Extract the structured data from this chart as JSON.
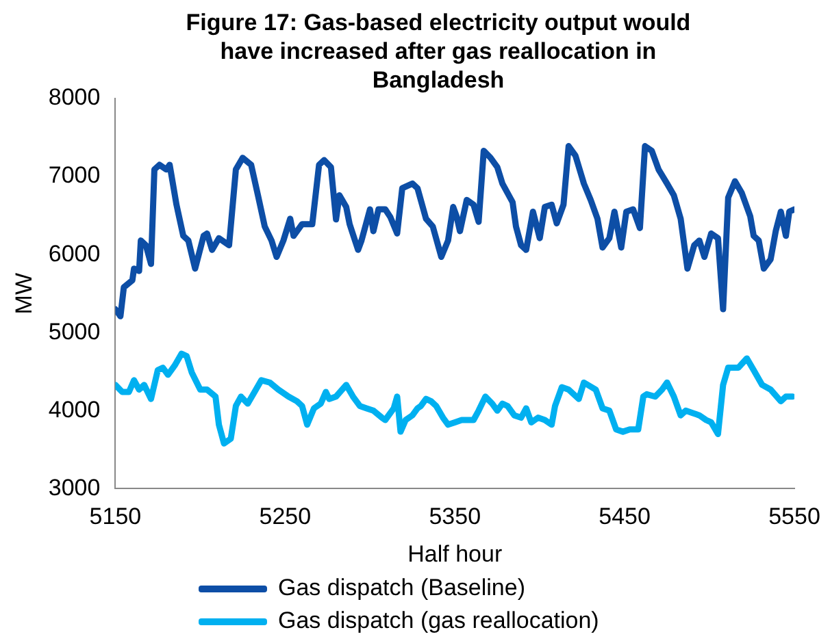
{
  "chart_data": {
    "type": "line",
    "title": "Figure 17: Gas-based electricity output would have increased after gas reallocation in Bangladesh",
    "xlabel": "Half hour",
    "ylabel": "MW",
    "xlim": [
      5150,
      5550
    ],
    "xticks": [
      5150,
      5250,
      5350,
      5450,
      5550
    ],
    "ylim": [
      3000,
      8000
    ],
    "yticks": [
      3000,
      4000,
      5000,
      6000,
      7000,
      8000
    ],
    "grid": false,
    "legend": "bottom",
    "marker": "none",
    "line_style": "solid",
    "series": [
      {
        "name": "Gas dispatch (Baseline)",
        "color": "#0d4ea6",
        "x": [
          5150,
          5153,
          5155,
          5160,
          5161,
          5164,
          5165,
          5168,
          5171,
          5173,
          5176,
          5180,
          5182,
          5186,
          5190,
          5193,
          5197,
          5202,
          5204,
          5207,
          5211,
          5217,
          5221,
          5225,
          5230,
          5234,
          5238,
          5242,
          5245,
          5249,
          5253,
          5255,
          5260,
          5266,
          5270,
          5273,
          5277,
          5280,
          5282,
          5286,
          5288,
          5293,
          5295,
          5300,
          5302,
          5305,
          5309,
          5312,
          5316,
          5319,
          5325,
          5328,
          5333,
          5337,
          5342,
          5346,
          5349,
          5351,
          5353,
          5357,
          5361,
          5364,
          5367,
          5371,
          5375,
          5378,
          5384,
          5386,
          5389,
          5392,
          5396,
          5400,
          5403,
          5407,
          5410,
          5414,
          5417,
          5421,
          5426,
          5430,
          5434,
          5437,
          5441,
          5444,
          5448,
          5451,
          5455,
          5459,
          5462,
          5466,
          5470,
          5475,
          5479,
          5483,
          5487,
          5491,
          5494,
          5497,
          5501,
          5505,
          5508,
          5511,
          5515,
          5519,
          5524,
          5526,
          5529,
          5532,
          5536,
          5539,
          5542,
          5545,
          5547,
          5550
        ],
        "values": [
          5300,
          5210,
          5580,
          5670,
          5820,
          5790,
          6180,
          6120,
          5880,
          7090,
          7150,
          7090,
          7150,
          6640,
          6240,
          6180,
          5820,
          6240,
          6270,
          6060,
          6210,
          6120,
          7090,
          7240,
          7150,
          6760,
          6360,
          6180,
          5970,
          6180,
          6460,
          6240,
          6390,
          6390,
          7150,
          7210,
          7120,
          6450,
          6760,
          6610,
          6390,
          6060,
          6180,
          6580,
          6300,
          6580,
          6580,
          6480,
          6270,
          6850,
          6910,
          6850,
          6460,
          6360,
          5970,
          6180,
          6610,
          6490,
          6300,
          6700,
          6640,
          6420,
          7330,
          7240,
          7120,
          6910,
          6670,
          6360,
          6120,
          6060,
          6550,
          6210,
          6610,
          6640,
          6400,
          6640,
          7390,
          7270,
          6910,
          6700,
          6460,
          6090,
          6210,
          6550,
          6090,
          6550,
          6580,
          6340,
          7390,
          7330,
          7090,
          6910,
          6760,
          6460,
          5820,
          6120,
          6180,
          5970,
          6270,
          6210,
          5300,
          6730,
          6940,
          6790,
          6490,
          6240,
          6180,
          5820,
          5940,
          6300,
          6550,
          6240,
          6550,
          6580
        ]
      },
      {
        "name": "Gas dispatch (gas reallocation)",
        "color": "#00b0f0",
        "x": [
          5150,
          5154,
          5158,
          5161,
          5164,
          5167,
          5171,
          5175,
          5178,
          5181,
          5185,
          5189,
          5192,
          5195,
          5200,
          5204,
          5209,
          5211,
          5214,
          5218,
          5221,
          5224,
          5228,
          5232,
          5236,
          5241,
          5246,
          5252,
          5257,
          5260,
          5263,
          5267,
          5271,
          5274,
          5276,
          5280,
          5286,
          5290,
          5294,
          5298,
          5302,
          5307,
          5309,
          5314,
          5316,
          5318,
          5321,
          5325,
          5328,
          5330,
          5333,
          5336,
          5339,
          5343,
          5346,
          5350,
          5354,
          5358,
          5361,
          5364,
          5368,
          5372,
          5375,
          5378,
          5381,
          5385,
          5389,
          5392,
          5395,
          5399,
          5403,
          5407,
          5409,
          5413,
          5417,
          5423,
          5426,
          5433,
          5437,
          5441,
          5445,
          5449,
          5453,
          5458,
          5461,
          5463,
          5468,
          5472,
          5475,
          5479,
          5483,
          5486,
          5490,
          5494,
          5498,
          5501,
          5505,
          5508,
          5511,
          5517,
          5522,
          5526,
          5531,
          5536,
          5542,
          5545,
          5549
        ],
        "values": [
          4330,
          4240,
          4240,
          4390,
          4270,
          4330,
          4150,
          4520,
          4550,
          4460,
          4580,
          4730,
          4700,
          4490,
          4270,
          4270,
          4180,
          3820,
          3580,
          3640,
          4060,
          4180,
          4090,
          4240,
          4390,
          4360,
          4270,
          4180,
          4120,
          4060,
          3820,
          4030,
          4090,
          4240,
          4150,
          4180,
          4330,
          4180,
          4060,
          4030,
          4000,
          3910,
          3880,
          4030,
          4180,
          3730,
          3880,
          3940,
          4030,
          4060,
          4150,
          4120,
          4060,
          3910,
          3820,
          3850,
          3880,
          3880,
          3880,
          4000,
          4180,
          4090,
          4000,
          4090,
          4060,
          3940,
          3910,
          4030,
          3850,
          3910,
          3880,
          3820,
          4060,
          4300,
          4270,
          4150,
          4360,
          4270,
          4030,
          4000,
          3760,
          3730,
          3760,
          3760,
          4180,
          4210,
          4180,
          4270,
          4360,
          4180,
          3940,
          4000,
          3970,
          3940,
          3880,
          3850,
          3700,
          4330,
          4550,
          4550,
          4670,
          4520,
          4330,
          4270,
          4120,
          4180,
          4180
        ]
      }
    ]
  }
}
